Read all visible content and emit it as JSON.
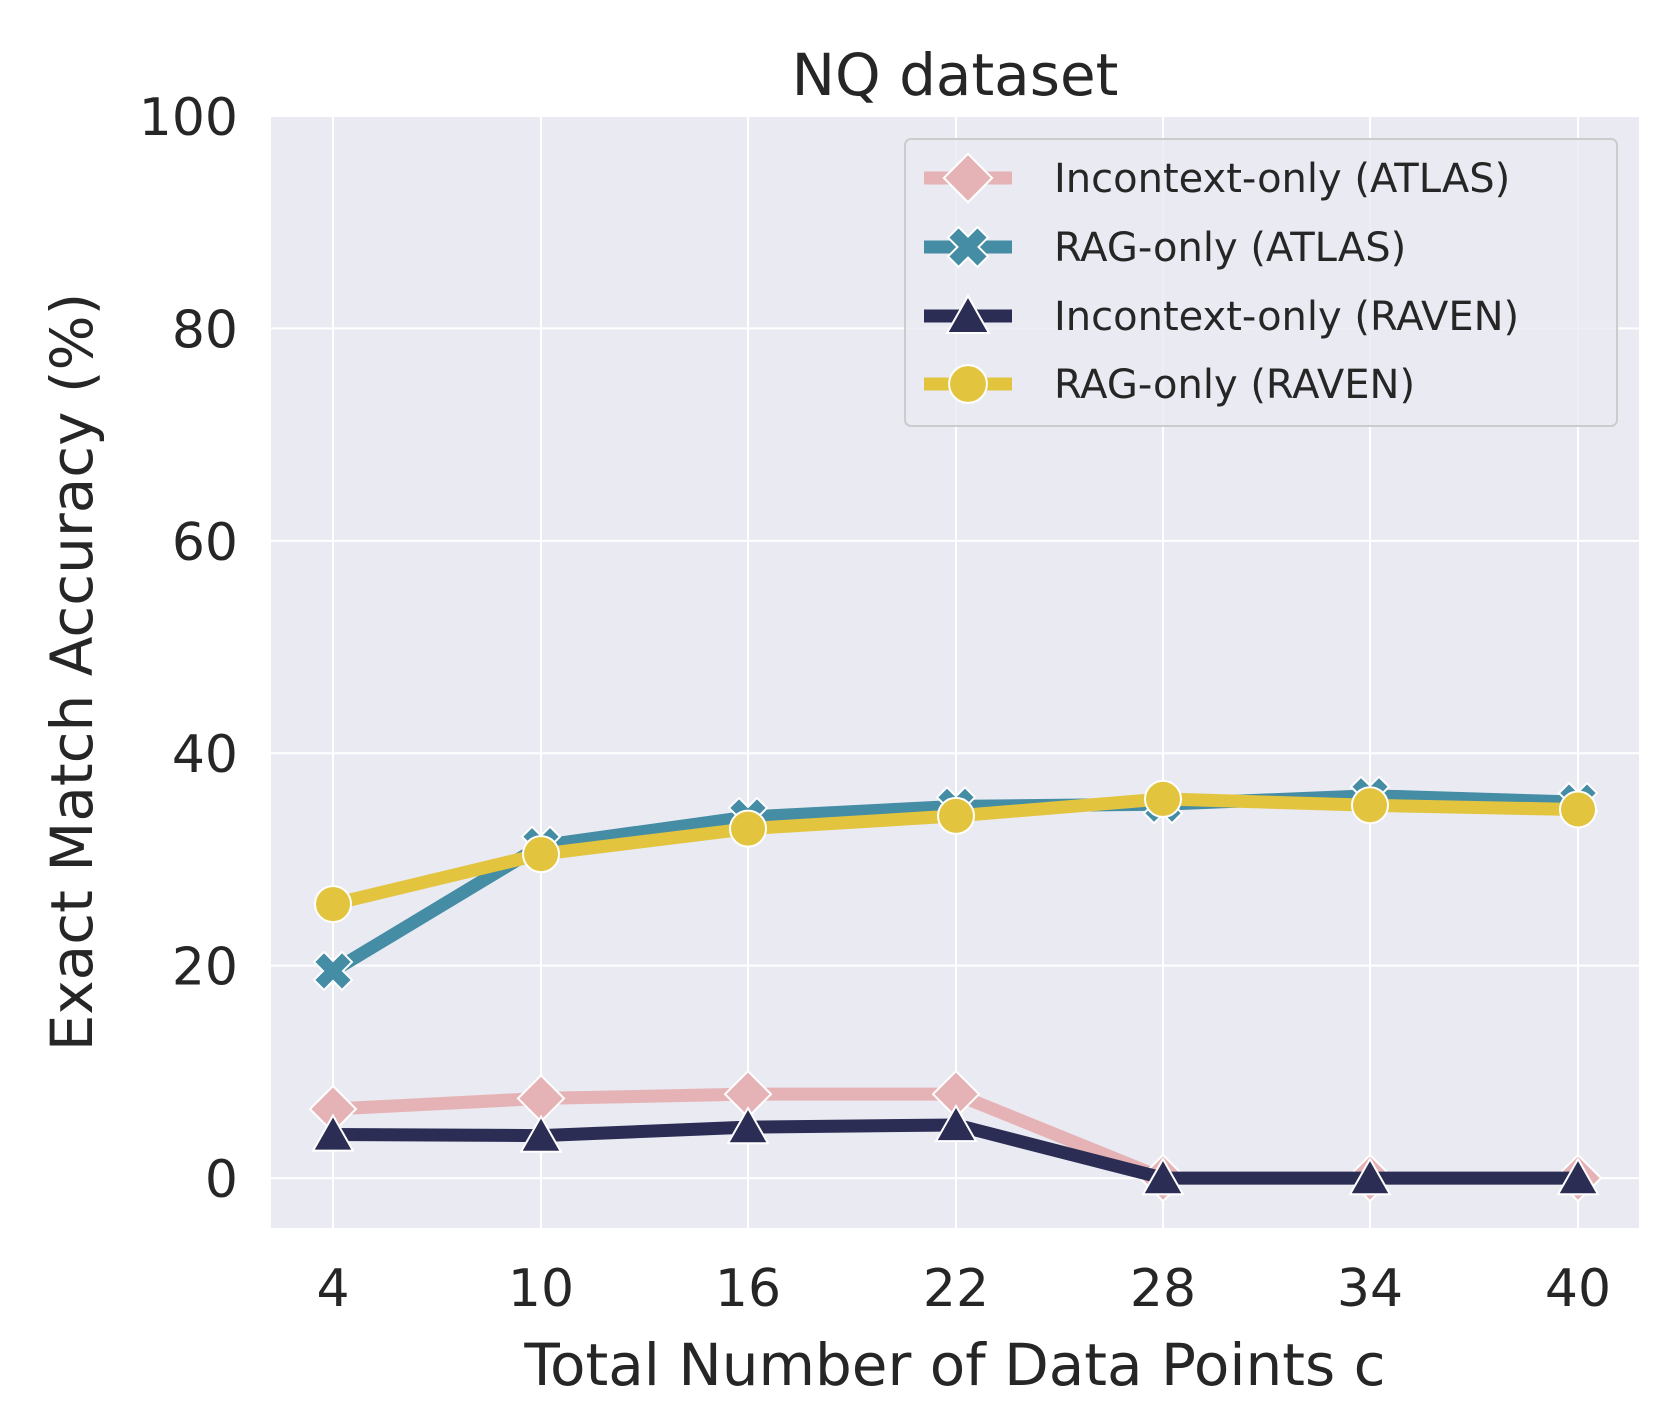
{
  "chart_data": {
    "type": "line",
    "title": "NQ dataset",
    "xlabel": "Total Number of Data Points c",
    "ylabel": "Exact Match Accuracy (%)",
    "x": [
      4,
      10,
      16,
      22,
      28,
      34,
      40
    ],
    "xticks": [
      "4",
      "10",
      "16",
      "22",
      "28",
      "34",
      "40"
    ],
    "yticks": [
      0,
      20,
      40,
      60,
      80,
      100
    ],
    "ylim": [
      -4.7,
      100
    ],
    "grid": true,
    "legend_position": "top-right",
    "series": [
      {
        "name": "Incontext-only (ATLAS)",
        "color": "#e5b3b6",
        "marker": "diamond",
        "values": [
          6.5,
          7.5,
          7.9,
          7.9,
          0.0,
          0.0,
          0.0
        ]
      },
      {
        "name": "RAG-only (ATLAS)",
        "color": "#458ca5",
        "marker": "x",
        "values": [
          19.5,
          31.3,
          34.0,
          35.0,
          35.2,
          36.0,
          35.4
        ]
      },
      {
        "name": "Incontext-only (RAVEN)",
        "color": "#2b2d55",
        "marker": "triangle",
        "values": [
          4.1,
          4.0,
          4.8,
          5.0,
          0.0,
          0.0,
          0.0
        ]
      },
      {
        "name": "RAG-only (RAVEN)",
        "color": "#e2c43f",
        "marker": "circle",
        "values": [
          25.8,
          30.5,
          32.9,
          34.1,
          35.7,
          35.1,
          34.7
        ]
      }
    ]
  }
}
